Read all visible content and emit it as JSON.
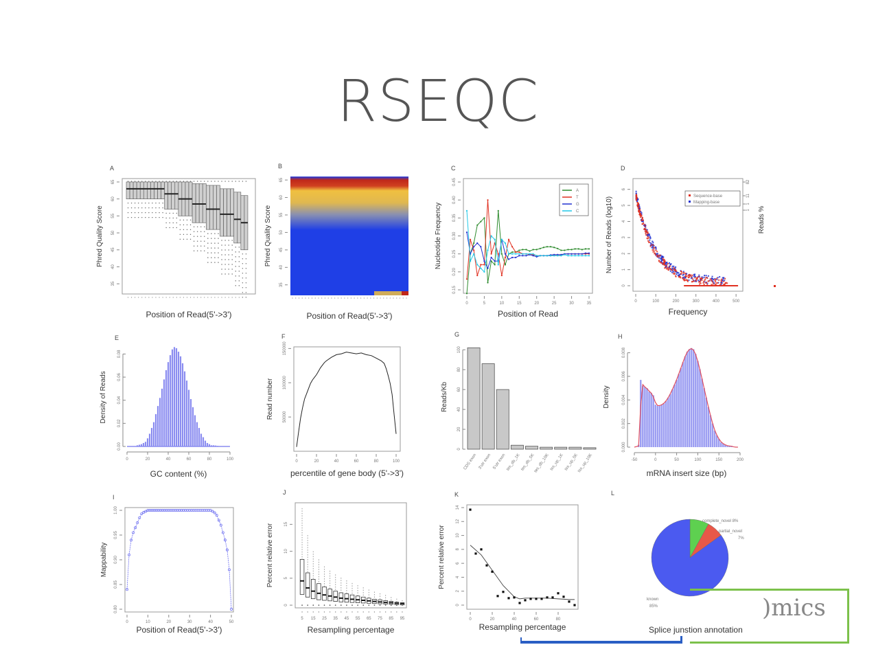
{
  "slide": {
    "title": "RSEQC",
    "logo_text": "Omics",
    "logo_text_visible": ")mics",
    "colors": {
      "logo_green": "#7cc14b",
      "underline_blue": "#2a5ec4"
    }
  },
  "chart_data": [
    {
      "id": "A",
      "type": "boxplot",
      "panel_label": "A",
      "xlabel": "Position of Read(5'->3')",
      "ylabel": "Phred Quality Score",
      "yticks": [
        35,
        40,
        45,
        50,
        55,
        60,
        65
      ],
      "ylim": [
        32,
        66
      ],
      "positions": 36,
      "groups": [
        {
          "n": 11,
          "median": 63,
          "q1": 60,
          "q3": 65
        },
        {
          "n": 4,
          "median": 61.5,
          "q1": 57,
          "q3": 65
        },
        {
          "n": 4,
          "median": 60,
          "q1": 55,
          "q3": 65
        },
        {
          "n": 4,
          "median": 58.5,
          "q1": 53,
          "q3": 64.5
        },
        {
          "n": 4,
          "median": 57,
          "q1": 51,
          "q3": 64
        },
        {
          "n": 4,
          "median": 55.5,
          "q1": 49,
          "q3": 63
        },
        {
          "n": 2,
          "median": 54,
          "q1": 47,
          "q3": 62
        },
        {
          "n": 2,
          "median": 53,
          "q1": 45,
          "q3": 61
        }
      ]
    },
    {
      "id": "B",
      "type": "heatmap",
      "panel_label": "B",
      "xlabel": "Position of Read(5'->3')",
      "ylabel": "Phred Quality Score",
      "yticks": [
        35,
        40,
        45,
        50,
        55,
        60,
        65
      ],
      "ylim": [
        32,
        66
      ],
      "colors": {
        "low": "#1f3fe6",
        "mid": "#f0c040",
        "high": "#c0281a"
      }
    },
    {
      "id": "C",
      "type": "line",
      "panel_label": "C",
      "xlabel": "Position of Read",
      "ylabel": "Nucleotide Frequency",
      "xlim": [
        0,
        35
      ],
      "ylim": [
        0.15,
        0.45
      ],
      "xticks": [
        0,
        5,
        10,
        15,
        20,
        25,
        30,
        35
      ],
      "yticks": [
        0.15,
        0.2,
        0.25,
        0.3,
        0.35,
        0.4,
        0.45
      ],
      "legend": "top-right",
      "x": [
        0,
        1,
        2,
        3,
        4,
        5,
        6,
        7,
        8,
        9,
        10,
        11,
        12,
        13,
        14,
        15,
        16,
        17,
        18,
        19,
        20,
        21,
        22,
        23,
        24,
        25,
        26,
        27,
        28,
        29,
        30,
        31,
        32,
        33,
        34,
        35
      ],
      "series": [
        {
          "name": "A",
          "color": "#2e8b2e",
          "values": [
            0.14,
            0.25,
            0.28,
            0.33,
            0.34,
            0.35,
            0.17,
            0.23,
            0.22,
            0.37,
            0.25,
            0.22,
            0.25,
            0.255,
            0.255,
            0.26,
            0.262,
            0.262,
            0.258,
            0.262,
            0.262,
            0.265,
            0.268,
            0.27,
            0.27,
            0.268,
            0.265,
            0.26,
            0.26,
            0.262,
            0.262,
            0.264,
            0.264,
            0.262,
            0.264,
            0.264
          ]
        },
        {
          "name": "T",
          "color": "#e03020",
          "values": [
            0.18,
            0.29,
            0.26,
            0.19,
            0.22,
            0.22,
            0.4,
            0.25,
            0.28,
            0.25,
            0.19,
            0.24,
            0.29,
            0.27,
            0.255,
            0.255,
            0.25,
            0.25,
            0.248,
            0.248,
            0.245,
            0.245,
            0.245,
            0.245,
            0.245,
            0.247,
            0.247,
            0.247,
            0.25,
            0.25,
            0.25,
            0.25,
            0.25,
            0.25,
            0.25,
            0.25
          ]
        },
        {
          "name": "G",
          "color": "#2030d0",
          "values": [
            0.31,
            0.25,
            0.27,
            0.28,
            0.27,
            0.23,
            0.21,
            0.24,
            0.23,
            0.23,
            0.29,
            0.25,
            0.235,
            0.24,
            0.24,
            0.245,
            0.245,
            0.245,
            0.248,
            0.245,
            0.242,
            0.245,
            0.245,
            0.245,
            0.247,
            0.248,
            0.248,
            0.248,
            0.25,
            0.25,
            0.25,
            0.25,
            0.25,
            0.25,
            0.252,
            0.252
          ]
        },
        {
          "name": "C",
          "color": "#20c8e8",
          "values": [
            0.37,
            0.23,
            0.25,
            0.22,
            0.21,
            0.2,
            0.26,
            0.3,
            0.29,
            0.22,
            0.29,
            0.28,
            0.25,
            0.25,
            0.25,
            0.25,
            0.25,
            0.25,
            0.25,
            0.25,
            0.245,
            0.245,
            0.245,
            0.245,
            0.245,
            0.245,
            0.245,
            0.245,
            0.248,
            0.245,
            0.245,
            0.245,
            0.245,
            0.245,
            0.245,
            0.245
          ]
        }
      ]
    },
    {
      "id": "D",
      "type": "scatter",
      "panel_label": "D",
      "xlabel": "Frequency",
      "ylabel": "Number of Reads (log10)",
      "ylabel_right": "Reads %",
      "xlim": [
        0,
        520
      ],
      "ylim": [
        0,
        6.5
      ],
      "xticks": [
        0,
        100,
        200,
        300,
        400,
        500
      ],
      "yticks": [
        0,
        1,
        2,
        3,
        4,
        5,
        6
      ],
      "yticks_right": [
        "82",
        "11",
        "1",
        "1"
      ],
      "legend": "top-right",
      "series": [
        {
          "name": "Sequence-base",
          "color": "#e03020"
        },
        {
          "name": "Mapping-base",
          "color": "#2030d0"
        }
      ]
    },
    {
      "id": "E",
      "type": "bar",
      "panel_label": "E",
      "xlabel": "GC content (%)",
      "ylabel": "Density of Reads",
      "xlim": [
        0,
        100
      ],
      "ylim": [
        0,
        0.085
      ],
      "xticks": [
        0,
        20,
        40,
        60,
        80,
        100
      ],
      "yticks": [
        0.0,
        0.02,
        0.04,
        0.06,
        0.08
      ],
      "bar_color": "#8a8cf0",
      "categories": [
        10,
        12,
        14,
        16,
        18,
        20,
        22,
        24,
        26,
        28,
        30,
        32,
        34,
        36,
        38,
        40,
        42,
        44,
        46,
        48,
        50,
        52,
        54,
        56,
        58,
        60,
        62,
        64,
        66,
        68,
        70,
        72,
        74,
        76,
        78,
        80,
        82,
        84,
        86,
        88,
        90
      ],
      "values": [
        0.001,
        0.0015,
        0.002,
        0.003,
        0.004,
        0.007,
        0.011,
        0.016,
        0.021,
        0.028,
        0.035,
        0.042,
        0.05,
        0.058,
        0.066,
        0.073,
        0.079,
        0.084,
        0.086,
        0.085,
        0.082,
        0.078,
        0.072,
        0.065,
        0.057,
        0.049,
        0.041,
        0.034,
        0.027,
        0.021,
        0.016,
        0.011,
        0.008,
        0.005,
        0.003,
        0.002,
        0.001,
        0.001,
        0.0008,
        0.0005,
        0.0003
      ]
    },
    {
      "id": "F",
      "type": "line",
      "panel_label": "F",
      "xlabel": "percentile of gene body (5'->3')",
      "ylabel": "Read number",
      "xlim": [
        0,
        100
      ],
      "ylim": [
        10000,
        110000
      ],
      "xticks": [
        0,
        20,
        40,
        60,
        80,
        100
      ],
      "yticks": [
        50000,
        100000,
        150000
      ],
      "ytick_labels": [
        "50000",
        "100000",
        "150000"
      ],
      "x": [
        0,
        2,
        4,
        6,
        8,
        10,
        12,
        14,
        16,
        18,
        20,
        22,
        24,
        26,
        28,
        30,
        35,
        40,
        45,
        50,
        55,
        60,
        65,
        70,
        75,
        80,
        85,
        88,
        90,
        92,
        94,
        96,
        98,
        100
      ],
      "values": [
        5,
        22,
        38,
        50,
        60,
        66,
        72,
        78,
        82,
        85,
        88,
        92,
        96,
        99,
        102,
        104,
        108,
        111,
        112,
        114,
        113,
        112,
        113,
        111,
        110,
        107,
        104,
        101,
        95,
        87,
        78,
        65,
        42,
        20
      ]
    },
    {
      "id": "G",
      "type": "bar",
      "panel_label": "G",
      "xlabel": "",
      "ylabel": "Reads/Kb",
      "ylim": [
        0,
        105
      ],
      "yticks": [
        0,
        20,
        40,
        60,
        80,
        100
      ],
      "bar_color": "#c8c8c8",
      "categories": [
        "CDS exon",
        "3'UTR exon",
        "5'UTR exon",
        "TES_down_1K",
        "TES_down_5K",
        "TES_down_10K",
        "TSS_up_1K",
        "TSS_up_5K",
        "TSS_up_10K"
      ],
      "category_labels_visible": [
        "CDS exon",
        "3'utr exon",
        "5'utr exon",
        "tes_db_1K",
        "tes_db_5K",
        "tes_db_10K",
        "tss_up_1K",
        "tss_up_5K",
        "tss_up_10K"
      ],
      "values": [
        102,
        86,
        60,
        4,
        3,
        2,
        2,
        2,
        1.5
      ]
    },
    {
      "id": "H",
      "type": "bar",
      "panel_label": "H",
      "xlabel": "mRNA insert size (bp)",
      "ylabel": "Density",
      "xlim": [
        -50,
        200
      ],
      "ylim": [
        0,
        0.0085
      ],
      "xticks": [
        -50,
        0,
        50,
        100,
        150,
        200
      ],
      "yticks": [
        0.0,
        0.002,
        0.004,
        0.006,
        0.008
      ],
      "bar_color": "#8a8cf0",
      "curve_color": "#e05060",
      "categories": [
        -40,
        -35,
        -30,
        -25,
        -20,
        -15,
        -10,
        -5,
        0,
        5,
        10,
        15,
        20,
        25,
        30,
        35,
        40,
        45,
        50,
        55,
        60,
        65,
        70,
        75,
        80,
        85,
        90,
        95,
        100,
        105,
        110,
        115,
        120,
        125,
        130,
        135,
        140,
        145,
        150,
        155,
        160,
        165,
        170,
        175,
        180,
        185,
        190,
        195
      ],
      "values": [
        0.0002,
        0.0057,
        0.0052,
        0.0051,
        0.005,
        0.0047,
        0.0046,
        0.0044,
        0.0036,
        0.0035,
        0.0035,
        0.0036,
        0.0037,
        0.0039,
        0.0042,
        0.0045,
        0.0049,
        0.0053,
        0.0057,
        0.0062,
        0.0067,
        0.0072,
        0.0077,
        0.0081,
        0.0083,
        0.0084,
        0.0083,
        0.0079,
        0.0073,
        0.0066,
        0.0058,
        0.005,
        0.0042,
        0.0034,
        0.0027,
        0.002,
        0.0014,
        0.001,
        0.0007,
        0.0004,
        0.0003,
        0.0002,
        0.0001,
        0.0001,
        0.0001,
        0.0,
        0.0,
        0.0
      ]
    },
    {
      "id": "I",
      "type": "line",
      "panel_label": "I",
      "xlabel": "Position of Read(5'->3')",
      "ylabel": "Mappability",
      "xlim": [
        0,
        50
      ],
      "ylim": [
        0.8,
        1.0
      ],
      "xticks": [
        0,
        10,
        20,
        30,
        40,
        50
      ],
      "yticks": [
        0.8,
        0.85,
        0.9,
        0.95,
        1.0
      ],
      "line_color": "#6a6cf0",
      "x": [
        0,
        1,
        2,
        3,
        4,
        5,
        6,
        7,
        8,
        9,
        10,
        11,
        12,
        13,
        14,
        15,
        16,
        17,
        18,
        19,
        20,
        21,
        22,
        23,
        24,
        25,
        26,
        27,
        28,
        29,
        30,
        31,
        32,
        33,
        34,
        35,
        36,
        37,
        38,
        39,
        40,
        41,
        42,
        43,
        44,
        45,
        46,
        47,
        48,
        49,
        50
      ],
      "values": [
        0.84,
        0.91,
        0.94,
        0.955,
        0.965,
        0.975,
        0.985,
        0.993,
        0.996,
        0.998,
        1,
        1,
        1,
        1,
        1,
        1,
        1,
        1,
        1,
        1,
        1,
        1,
        1,
        1,
        1,
        1,
        1,
        1,
        1,
        1,
        1,
        1,
        1,
        1,
        1,
        1,
        1,
        1,
        1,
        1,
        1,
        0.998,
        0.995,
        0.99,
        0.98,
        0.97,
        0.955,
        0.94,
        0.92,
        0.88,
        0.8
      ]
    },
    {
      "id": "J",
      "type": "boxplot",
      "panel_label": "J",
      "xlabel": "Resampling percentage",
      "ylabel": "Percent relative error",
      "ylim": [
        0,
        18
      ],
      "yticks": [
        0,
        5,
        10,
        15
      ],
      "xtick_labels": [
        "5",
        "15",
        "25",
        "35",
        "45",
        "55",
        "65",
        "75",
        "85",
        "95"
      ],
      "categories": [
        5,
        10,
        15,
        20,
        25,
        30,
        35,
        40,
        45,
        50,
        55,
        60,
        65,
        70,
        75,
        80,
        85,
        90,
        95
      ],
      "boxes": [
        {
          "q1": 2.0,
          "median": 4.5,
          "q3": 8.5,
          "max": 18
        },
        {
          "q1": 1.5,
          "median": 3.2,
          "q3": 6.0,
          "max": 13
        },
        {
          "q1": 1.2,
          "median": 2.6,
          "q3": 4.8,
          "max": 10
        },
        {
          "q1": 1.0,
          "median": 2.2,
          "q3": 4.0,
          "max": 8.5
        },
        {
          "q1": 0.9,
          "median": 1.9,
          "q3": 3.4,
          "max": 7.2
        },
        {
          "q1": 0.8,
          "median": 1.7,
          "q3": 3.0,
          "max": 6.4
        },
        {
          "q1": 0.7,
          "median": 1.5,
          "q3": 2.6,
          "max": 5.7
        },
        {
          "q1": 0.6,
          "median": 1.3,
          "q3": 2.3,
          "max": 5.1
        },
        {
          "q1": 0.55,
          "median": 1.2,
          "q3": 2.1,
          "max": 4.6
        },
        {
          "q1": 0.5,
          "median": 1.1,
          "q3": 1.9,
          "max": 4.1
        },
        {
          "q1": 0.45,
          "median": 1.0,
          "q3": 1.7,
          "max": 3.7
        },
        {
          "q1": 0.4,
          "median": 0.9,
          "q3": 1.5,
          "max": 3.3
        },
        {
          "q1": 0.35,
          "median": 0.8,
          "q3": 1.3,
          "max": 2.9
        },
        {
          "q1": 0.3,
          "median": 0.7,
          "q3": 1.1,
          "max": 2.5
        },
        {
          "q1": 0.25,
          "median": 0.6,
          "q3": 1.0,
          "max": 2.2
        },
        {
          "q1": 0.2,
          "median": 0.5,
          "q3": 0.85,
          "max": 1.9
        },
        {
          "q1": 0.15,
          "median": 0.45,
          "q3": 0.7,
          "max": 1.5
        },
        {
          "q1": 0.1,
          "median": 0.35,
          "q3": 0.55,
          "max": 1.2
        },
        {
          "q1": 0.05,
          "median": 0.3,
          "q3": 0.45,
          "max": 0.9
        }
      ]
    },
    {
      "id": "K",
      "type": "scatter",
      "panel_label": "K",
      "xlabel": "Resampling percentage",
      "ylabel": "Percent relative error",
      "xlim": [
        0,
        95
      ],
      "ylim": [
        0,
        14
      ],
      "xticks": [
        0,
        20,
        40,
        60,
        80
      ],
      "yticks": [
        0,
        2,
        4,
        6,
        8,
        10,
        12,
        14
      ],
      "x": [
        0,
        5,
        10,
        15,
        20,
        25,
        30,
        35,
        40,
        45,
        50,
        55,
        60,
        65,
        70,
        75,
        80,
        85,
        90,
        95
      ],
      "values": [
        13.7,
        7.4,
        8.0,
        5.7,
        4.8,
        1.3,
        1.9,
        1.0,
        1.1,
        0.3,
        0.7,
        0.9,
        0.9,
        0.9,
        1.1,
        1.1,
        1.7,
        1.2,
        0.5,
        0.0
      ],
      "fit_x": [
        0,
        10,
        20,
        30,
        40,
        45,
        50,
        60,
        70,
        80,
        90,
        95
      ],
      "fit": [
        8.6,
        7.2,
        5.0,
        2.8,
        1.2,
        0.9,
        1.0,
        1.0,
        1.0,
        0.9,
        0.8,
        0.8
      ]
    },
    {
      "id": "L",
      "type": "pie",
      "panel_label": "L",
      "title": "Splice junstion annotation",
      "slices": [
        {
          "label": "known",
          "pct_label": "85%",
          "value": 85,
          "color": "#4b5af0"
        },
        {
          "label": "complete_novel",
          "pct_label": "8%",
          "value": 8,
          "color": "#5ed050"
        },
        {
          "label": "partial_novel",
          "pct_label": "7%",
          "value": 7,
          "color": "#e85848"
        }
      ]
    }
  ]
}
